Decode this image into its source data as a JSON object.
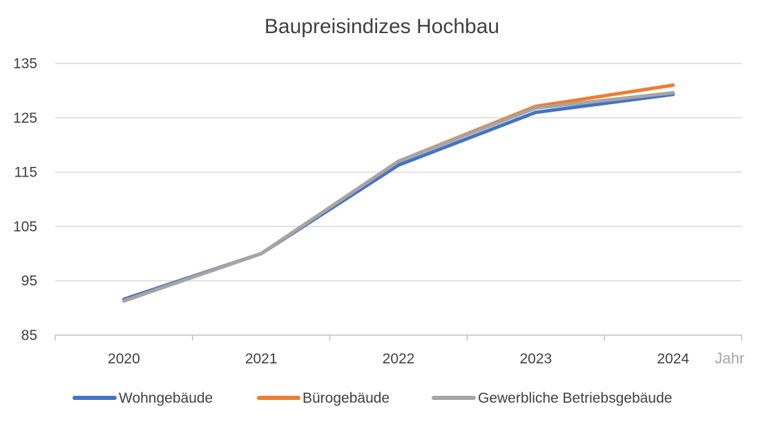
{
  "chart_data": {
    "type": "line",
    "title": "Baupreisindizes Hochbau",
    "xlabel": "Jahr",
    "ylabel": "",
    "categories": [
      "2020",
      "2021",
      "2022",
      "2023",
      "2024"
    ],
    "y_ticks": [
      "85",
      "95",
      "105",
      "115",
      "125",
      "135"
    ],
    "ylim": [
      85,
      135
    ],
    "grid": true,
    "legend_position": "bottom",
    "series": [
      {
        "name": "Wohngebäude",
        "color": "#4472c4",
        "values": [
          91.6,
          100,
          116.3,
          126,
          129.3
        ]
      },
      {
        "name": "Bürogebäude",
        "color": "#ed7d31",
        "values": [
          91.3,
          100,
          117,
          127.1,
          131
        ]
      },
      {
        "name": "Gewerbliche Betriebsgebäude",
        "color": "#a5a5a5",
        "values": [
          91.3,
          100,
          117,
          126.8,
          129.6
        ]
      }
    ]
  }
}
